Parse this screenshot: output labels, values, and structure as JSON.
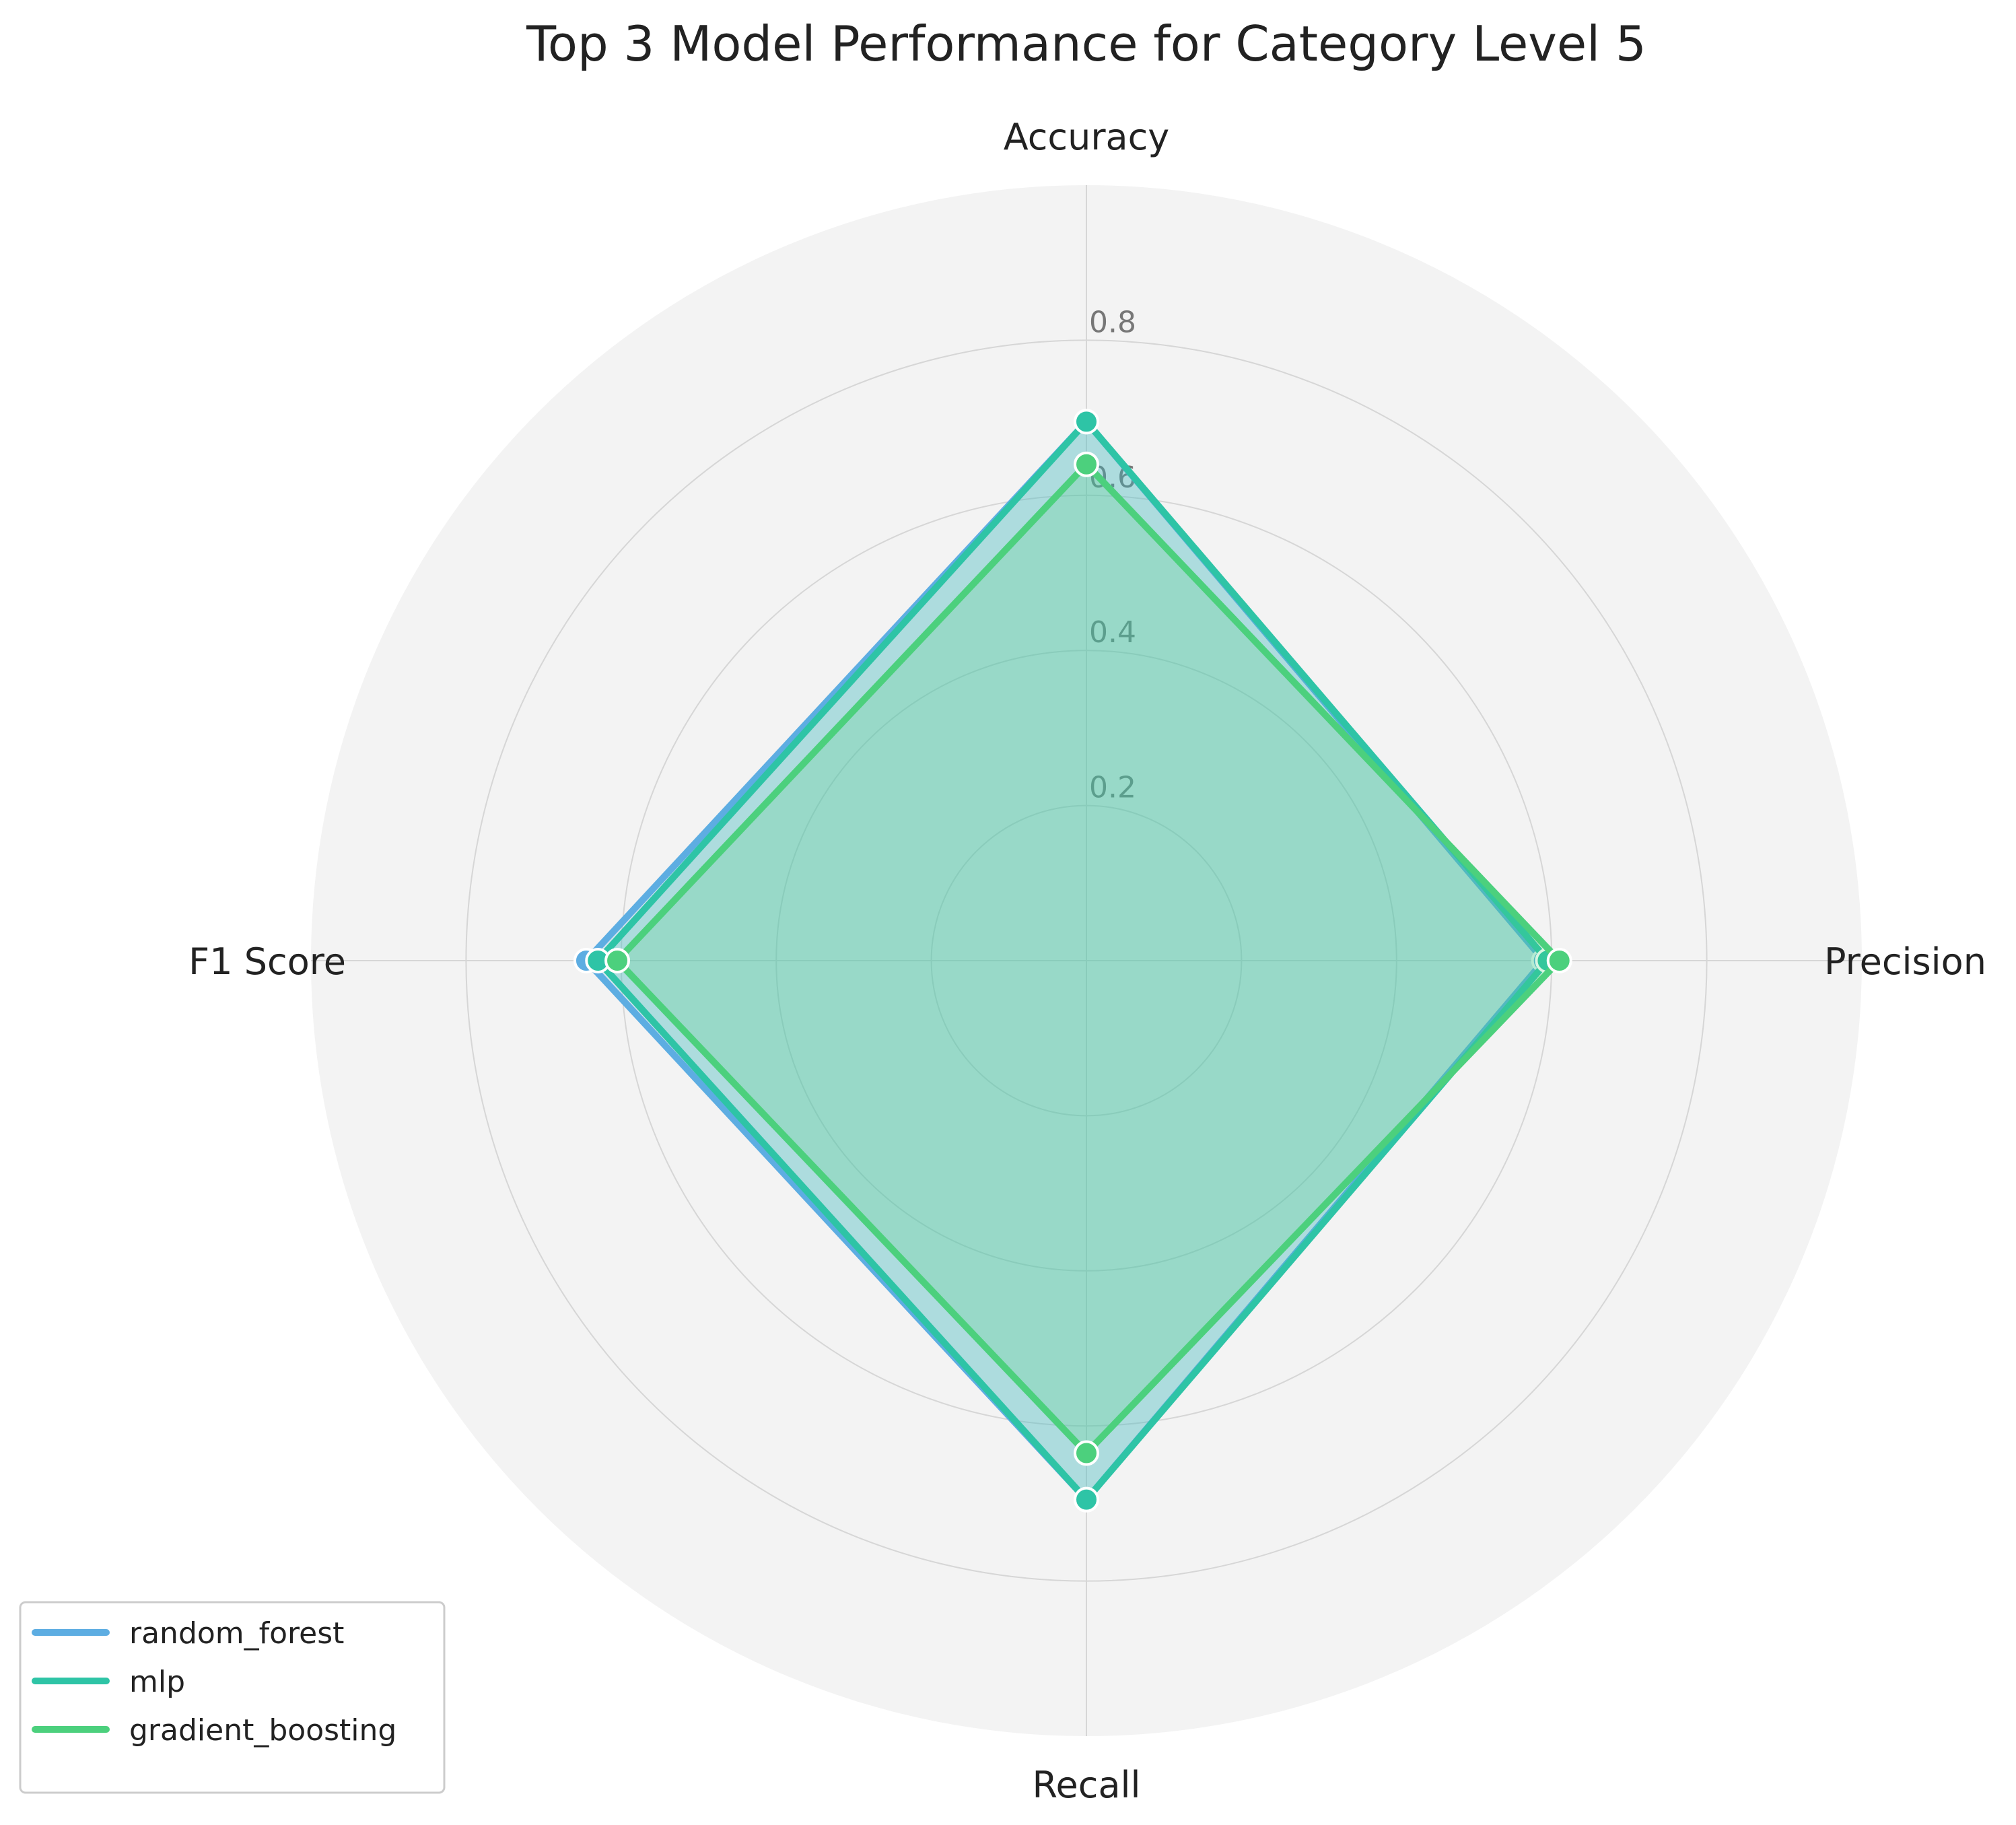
{
  "chart_data": {
    "type": "radar",
    "title": "Top 3 Model Performance for Category Level 5",
    "axes": [
      "Accuracy",
      "Precision",
      "Recall",
      "F1 Score"
    ],
    "rlim": [
      0,
      1.0
    ],
    "rticks": [
      0.2,
      0.4,
      0.6,
      0.8
    ],
    "rtick_labels": [
      "0.2",
      "0.4",
      "0.6",
      "0.8"
    ],
    "grid": true,
    "legend_position": "lower-left",
    "series": [
      {
        "name": "random_forest",
        "color": "#5dade2",
        "values": [
          0.695,
          0.59,
          0.695,
          0.645
        ]
      },
      {
        "name": "mlp",
        "color": "#2ec4a6",
        "values": [
          0.695,
          0.595,
          0.695,
          0.63
        ]
      },
      {
        "name": "gradient_boosting",
        "color": "#4cd07d",
        "values": [
          0.64,
          0.61,
          0.635,
          0.605
        ]
      }
    ]
  }
}
